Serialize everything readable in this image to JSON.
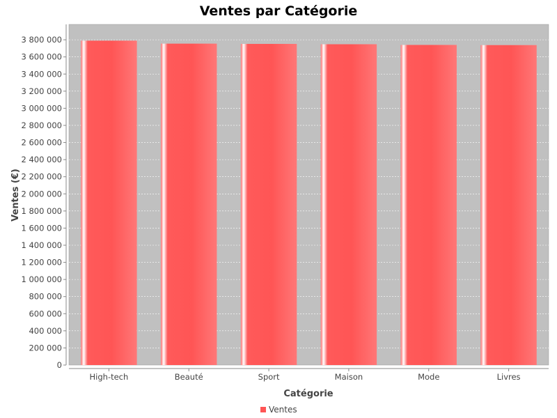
{
  "chart_data": {
    "type": "bar",
    "title": "Ventes par Catégorie",
    "xlabel": "Catégorie",
    "ylabel": "Ventes (€)",
    "categories": [
      "High-tech",
      "Beauté",
      "Sport",
      "Maison",
      "Mode",
      "Livres"
    ],
    "series": [
      {
        "name": "Ventes",
        "values": [
          3790000,
          3755000,
          3752000,
          3748000,
          3740000,
          3738000
        ]
      }
    ],
    "ylim": [
      0,
      3980000
    ],
    "yticks": [
      0,
      200000,
      400000,
      600000,
      800000,
      1000000,
      1200000,
      1400000,
      1600000,
      1800000,
      2000000,
      2200000,
      2400000,
      2600000,
      2800000,
      3000000,
      3200000,
      3400000,
      3600000,
      3800000
    ],
    "ytick_labels": [
      "0",
      "200 000",
      "400 000",
      "600 000",
      "800 000",
      "1 000 000",
      "1 200 000",
      "1 400 000",
      "1 600 000",
      "1 800 000",
      "2 000 000",
      "2 200 000",
      "2 400 000",
      "2 600 000",
      "2 800 000",
      "3 000 000",
      "3 200 000",
      "3 400 000",
      "3 600 000",
      "3 800 000"
    ],
    "grid": true,
    "legend_position": "bottom-center",
    "colors": {
      "bar": "#ff5555",
      "plot_background": "#c0c0c0",
      "gridline": "#ffffff"
    }
  }
}
